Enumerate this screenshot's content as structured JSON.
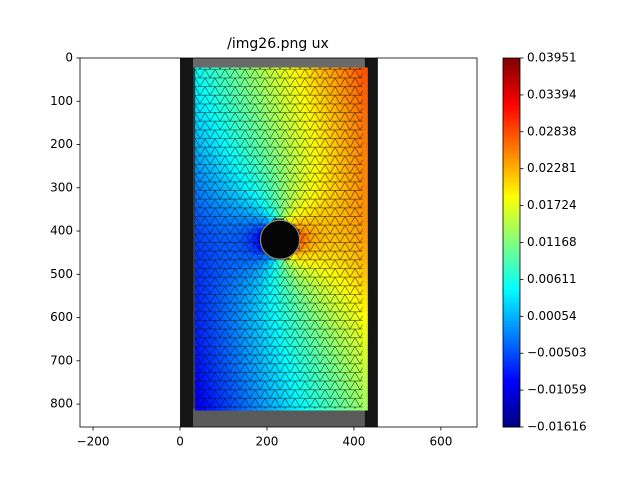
{
  "chart_data": {
    "type": "image",
    "title": "/img26.png ux",
    "xlim": [
      -230,
      683
    ],
    "ylim": [
      853,
      0
    ],
    "xticks": [
      {
        "value": -200,
        "label": "−200"
      },
      0,
      200,
      400,
      600
    ],
    "yticks": [
      0,
      100,
      200,
      300,
      400,
      500,
      600,
      700,
      800
    ],
    "colorbar": {
      "colormap": "jet",
      "lim": [
        -0.01616,
        0.03951
      ],
      "ticks": [
        {
          "value": 0.03951,
          "label": "0.03951"
        },
        {
          "value": 0.03394,
          "label": "0.03394"
        },
        {
          "value": 0.02838,
          "label": "0.02838"
        },
        {
          "value": 0.02281,
          "label": "0.02281"
        },
        {
          "value": 0.01724,
          "label": "0.01724"
        },
        {
          "value": 0.01168,
          "label": "0.01168"
        },
        {
          "value": 0.00611,
          "label": "0.00611"
        },
        {
          "value": 0.00054,
          "label": "0.00054"
        },
        {
          "value": -0.00503,
          "label": "−0.00503"
        },
        {
          "value": -0.01059,
          "label": "−0.01059"
        },
        {
          "value": -0.01616,
          "label": "−0.01616"
        }
      ]
    }
  }
}
